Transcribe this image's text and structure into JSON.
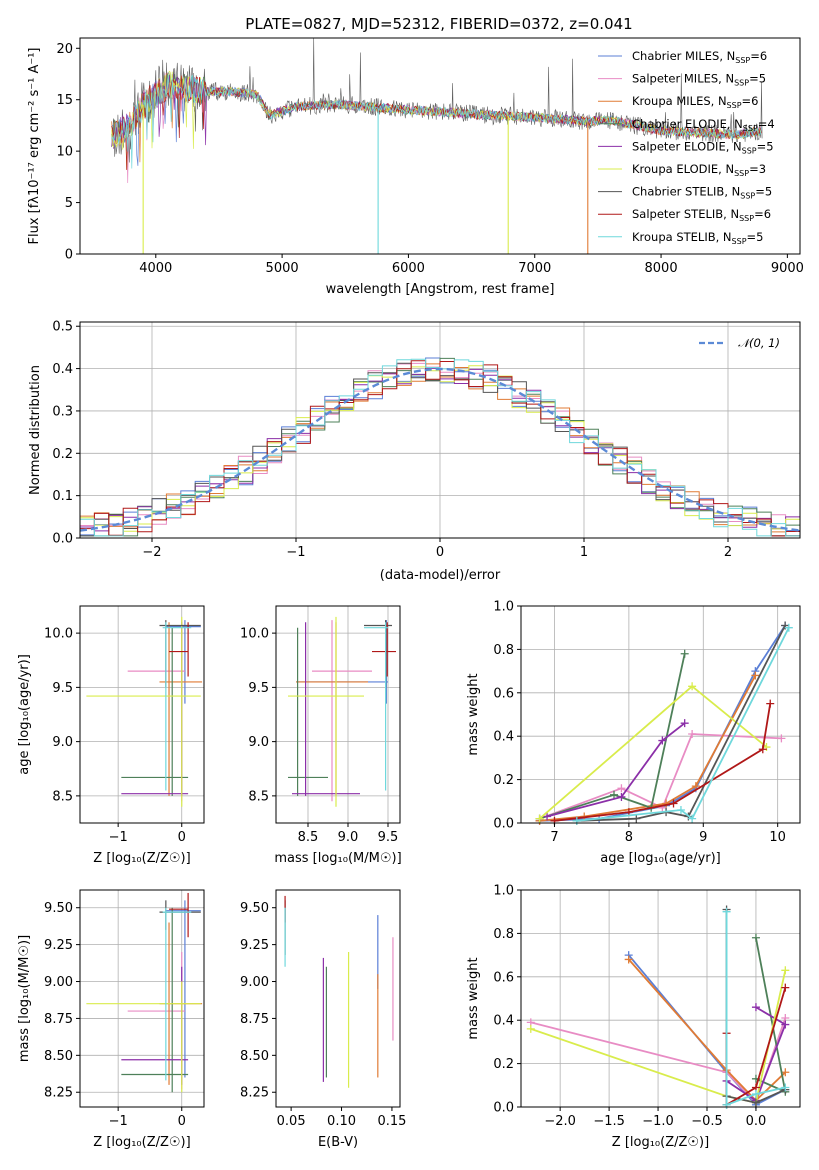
{
  "figure_title": "PLATE=0827, MJD=52312, FIBERID=0372, z=0.041",
  "models": [
    {
      "name": "Chabrier MILES, N",
      "nssp": "=6",
      "color": "#5b7fd6"
    },
    {
      "name": "Salpeter MILES, N",
      "nssp": "=5",
      "color": "#e88cc4"
    },
    {
      "name": "Kroupa MILES, N",
      "nssp": "=6",
      "color": "#e07b35"
    },
    {
      "name": "Chabrier ELODIE, N",
      "nssp": "=4",
      "color": "#4e8059"
    },
    {
      "name": "Salpeter ELODIE, N",
      "nssp": "=5",
      "color": "#8b2fa8"
    },
    {
      "name": "Kroupa ELODIE, N",
      "nssp": "=3",
      "color": "#d9ec4c"
    },
    {
      "name": "Chabrier STELIB, N",
      "nssp": "=5",
      "color": "#555555"
    },
    {
      "name": "Salpeter STELIB, N",
      "nssp": "=6",
      "color": "#b01818"
    },
    {
      "name": "Kroupa STELIB, N",
      "nssp": "=5",
      "color": "#6fd8dc"
    }
  ],
  "nssp_subscript": "SSP",
  "chart_data": [
    {
      "type": "line",
      "panel": "spectrum",
      "xlabel": "wavelength [Angstrom, rest frame]",
      "ylabel": "Flux [fλ10⁻¹⁷ erg cm⁻² s⁻¹ A⁻¹]",
      "xlim": [
        3400,
        9100
      ],
      "ylim": [
        0,
        21
      ],
      "xticks": [
        "4000",
        "5000",
        "6000",
        "7000",
        "8000",
        "9000"
      ],
      "yticks": [
        "0",
        "5",
        "10",
        "15",
        "20"
      ],
      "continuum": {
        "x": [
          3650,
          3800,
          3900,
          4000,
          4100,
          4200,
          4400,
          4600,
          4800,
          4900,
          5100,
          5300,
          5500,
          5800,
          6000,
          6300,
          6600,
          7000,
          7400,
          7600,
          7800,
          8000,
          8300,
          8600,
          8800
        ],
        "y": [
          11.5,
          12.5,
          14.5,
          15.5,
          16.5,
          16.2,
          15.8,
          15.8,
          15.5,
          13.5,
          14.3,
          14.5,
          14.5,
          14.2,
          14.0,
          13.8,
          13.5,
          13.3,
          12.9,
          13.0,
          12.5,
          12.0,
          11.8,
          11.6,
          12.0
        ]
      },
      "dips": [
        {
          "x": 3900,
          "y": 0,
          "series": "Kroupa ELODIE"
        },
        {
          "x": 5760,
          "y": 0,
          "series": "Kroupa STELIB"
        },
        {
          "x": 6790,
          "y": 0,
          "series": "Kroupa ELODIE"
        },
        {
          "x": 7420,
          "y": 0,
          "series": "Kroupa MILES"
        }
      ],
      "legend": "top-right",
      "grid": false
    },
    {
      "type": "line",
      "panel": "residual distribution",
      "xlabel": "(data-model)/error",
      "ylabel": "Normed distribution",
      "xlim": [
        -2.5,
        2.5
      ],
      "ylim": [
        0,
        0.51
      ],
      "xticks": [
        "−2",
        "−1",
        "0",
        "1",
        "2"
      ],
      "yticks": [
        "0.0",
        "0.1",
        "0.2",
        "0.3",
        "0.4",
        "0.5"
      ],
      "reference_label": "𝒩(0, 1)",
      "reference": {
        "mean": 0,
        "sigma": 1
      },
      "bin_width": 0.1,
      "grid": true,
      "legend": "top-right"
    },
    {
      "type": "scatter",
      "panel": "age vs Z",
      "xlabel": "Z [log₁₀(Z/Z☉)]",
      "ylabel": "age  [log₁₀(age/yr)]",
      "xlim": [
        -1.6,
        0.35
      ],
      "ylim": [
        8.25,
        10.25
      ],
      "xticks": [
        "−1",
        "0"
      ],
      "yticks": [
        "8.5",
        "9.0",
        "9.5",
        "10.0"
      ],
      "grid": true
    },
    {
      "type": "scatter",
      "panel": "age vs mass",
      "xlabel": "mass [log₁₀(M/M☉)]",
      "ylabel": "",
      "xlim": [
        8.1,
        9.65
      ],
      "ylim": [
        8.25,
        10.25
      ],
      "xticks": [
        "8.5",
        "9.0",
        "9.5"
      ],
      "yticks": [
        "8.5",
        "9.0",
        "9.5",
        "10.0"
      ],
      "grid": true
    },
    {
      "type": "line",
      "panel": "mass weight vs age",
      "xlabel": "age  [log₁₀(age/yr)]",
      "ylabel": "mass weight",
      "xlim": [
        6.55,
        10.3
      ],
      "ylim": [
        0,
        1.0
      ],
      "xticks": [
        "7",
        "8",
        "9",
        "10"
      ],
      "yticks": [
        "0.0",
        "0.2",
        "0.4",
        "0.6",
        "0.8",
        "1.0"
      ],
      "grid": true,
      "series": [
        {
          "name": "Chabrier MILES",
          "x": [
            6.8,
            7.6,
            8.5,
            8.9,
            9.7,
            10.1
          ],
          "y": [
            0.01,
            0.02,
            0.08,
            0.16,
            0.7,
            0.91
          ]
        },
        {
          "name": "Salpeter MILES",
          "x": [
            6.8,
            7.9,
            8.45,
            8.85,
            10.05
          ],
          "y": [
            0.02,
            0.16,
            0.07,
            0.41,
            0.39
          ]
        },
        {
          "name": "Kroupa MILES",
          "x": [
            6.8,
            7.4,
            8.5,
            8.9,
            9.7
          ],
          "y": [
            0.01,
            0.03,
            0.09,
            0.17,
            0.68
          ]
        },
        {
          "name": "Chabrier ELODIE",
          "x": [
            6.8,
            7.8,
            8.3,
            8.75
          ],
          "y": [
            0.02,
            0.13,
            0.07,
            0.78
          ]
        },
        {
          "name": "Salpeter ELODIE",
          "x": [
            6.9,
            7.9,
            8.45,
            8.75
          ],
          "y": [
            0.03,
            0.12,
            0.38,
            0.46
          ]
        },
        {
          "name": "Kroupa ELODIE",
          "x": [
            6.8,
            8.85,
            9.85
          ],
          "y": [
            0.02,
            0.63,
            0.35
          ]
        },
        {
          "name": "Chabrier STELIB",
          "x": [
            7.3,
            8.1,
            8.5,
            8.8,
            10.1
          ],
          "y": [
            0.01,
            0.02,
            0.05,
            0.03,
            0.91
          ]
        },
        {
          "name": "Salpeter STELIB",
          "x": [
            7.0,
            8.0,
            8.6,
            9.8,
            9.9
          ],
          "y": [
            0.01,
            0.05,
            0.09,
            0.34,
            0.55
          ]
        },
        {
          "name": "Kroupa STELIB",
          "x": [
            7.3,
            8.7,
            8.85,
            10.15
          ],
          "y": [
            0.01,
            0.06,
            0.02,
            0.9
          ]
        }
      ]
    },
    {
      "type": "scatter",
      "panel": "mass vs Z",
      "xlabel": "Z [log₁₀(Z/Z☉)]",
      "ylabel": "mass [log₁₀(M/M☉)]",
      "xlim": [
        -1.6,
        0.35
      ],
      "ylim": [
        8.15,
        9.62
      ],
      "xticks": [
        "−1",
        "0"
      ],
      "yticks": [
        "8.25",
        "8.50",
        "8.75",
        "9.00",
        "9.25",
        "9.50"
      ],
      "grid": true
    },
    {
      "type": "scatter",
      "panel": "mass vs E(B-V)",
      "xlabel": "E(B-V)",
      "ylabel": "",
      "xlim": [
        0.035,
        0.158
      ],
      "ylim": [
        8.15,
        9.62
      ],
      "xticks": [
        "0.05",
        "0.10",
        "0.15"
      ],
      "yticks": [
        "8.25",
        "8.50",
        "8.75",
        "9.00",
        "9.25",
        "9.50"
      ],
      "grid": false,
      "series": [
        {
          "name": "Chabrier MILES",
          "x": 0.136,
          "ylo": 8.95,
          "yhi": 9.45
        },
        {
          "name": "Salpeter MILES",
          "x": 0.151,
          "ylo": 8.6,
          "yhi": 9.3
        },
        {
          "name": "Kroupa MILES",
          "x": 0.136,
          "ylo": 8.35,
          "yhi": 9.05
        },
        {
          "name": "Chabrier ELODIE",
          "x": 0.085,
          "ylo": 8.35,
          "yhi": 9.1
        },
        {
          "name": "Salpeter ELODIE",
          "x": 0.082,
          "ylo": 8.32,
          "yhi": 9.16
        },
        {
          "name": "Kroupa ELODIE",
          "x": 0.107,
          "ylo": 8.28,
          "yhi": 9.2
        },
        {
          "name": "Chabrier STELIB",
          "x": 0.044,
          "ylo": 9.18,
          "yhi": 9.55
        },
        {
          "name": "Salpeter STELIB",
          "x": 0.044,
          "ylo": 9.4,
          "yhi": 9.58
        },
        {
          "name": "Kroupa STELIB",
          "x": 0.044,
          "ylo": 9.1,
          "yhi": 9.5
        }
      ]
    },
    {
      "type": "line",
      "panel": "mass weight vs Z",
      "xlabel": "Z [log₁₀(Z/Z☉)]",
      "ylabel": "mass weight",
      "xlim": [
        -2.4,
        0.45
      ],
      "ylim": [
        0,
        1.0
      ],
      "xticks": [
        "−2.0",
        "−1.5",
        "−1.0",
        "−0.5",
        "0.0"
      ],
      "yticks": [
        "0.0",
        "0.2",
        "0.4",
        "0.6",
        "0.8",
        "1.0"
      ],
      "grid": true,
      "series": [
        {
          "name": "Chabrier MILES",
          "x": [
            -1.3,
            -0.3,
            0.0,
            0.3
          ],
          "y": [
            0.7,
            0.16,
            0.01,
            0.08
          ]
        },
        {
          "name": "Salpeter MILES",
          "x": [
            -2.3,
            -0.3,
            0.0,
            0.3
          ],
          "y": [
            0.39,
            0.16,
            0.02,
            0.41
          ]
        },
        {
          "name": "Kroupa MILES",
          "x": [
            -1.3,
            -0.3,
            0.0,
            0.3
          ],
          "y": [
            0.68,
            0.17,
            0.03,
            0.16
          ]
        },
        {
          "name": "Chabrier ELODIE",
          "x": [
            0.0,
            0.3,
            0.0
          ],
          "y": [
            0.78,
            0.07,
            0.13
          ]
        },
        {
          "name": "Salpeter ELODIE",
          "x": [
            -0.3,
            0.0,
            0.3,
            0.0
          ],
          "y": [
            0.12,
            0.03,
            0.38,
            0.46
          ]
        },
        {
          "name": "Kroupa ELODIE",
          "x": [
            -2.3,
            -0.3,
            0.0,
            0.3
          ],
          "y": [
            0.36,
            0.05,
            0.02,
            0.63
          ]
        },
        {
          "name": "Chabrier STELIB",
          "x": [
            -0.3,
            -0.3,
            0.0,
            0.3
          ],
          "y": [
            0.91,
            0.05,
            0.02,
            0.08
          ]
        },
        {
          "name": "Salpeter STELIB",
          "x": [
            -0.3,
            -0.3,
            0.0,
            0.3
          ],
          "y": [
            0.34,
            0.01,
            0.09,
            0.55
          ]
        },
        {
          "name": "Kroupa STELIB",
          "x": [
            -0.3,
            -0.3,
            0.0,
            0.3
          ],
          "y": [
            0.9,
            0.01,
            0.06,
            0.09
          ]
        }
      ]
    }
  ]
}
